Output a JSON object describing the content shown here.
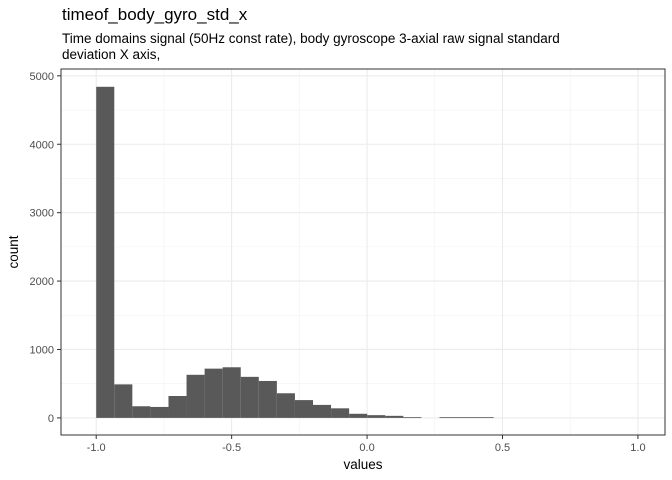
{
  "chart_data": {
    "type": "bar",
    "title": "timeof_body_gyro_std_x",
    "subtitle": "Time domains signal (50Hz const rate), body gyroscope 3-axial raw signal standard deviation X axis,",
    "xlabel": "values",
    "ylabel": "count",
    "xlim": [
      -1.13,
      1.1
    ],
    "ylim": [
      -250,
      5100
    ],
    "x_ticks": [
      -1.0,
      -0.5,
      0.0,
      0.5,
      1.0
    ],
    "x_tick_labels": [
      "-1.0",
      "-0.5",
      "0.0",
      "0.5",
      "1.0"
    ],
    "y_ticks": [
      0,
      1000,
      2000,
      3000,
      4000,
      5000
    ],
    "y_tick_labels": [
      "0",
      "1000",
      "2000",
      "3000",
      "4000",
      "5000"
    ],
    "bar_color": "#595959",
    "grid": true,
    "bins": {
      "start": -1.0,
      "width": 0.0667,
      "counts": [
        4840,
        490,
        170,
        160,
        320,
        630,
        720,
        740,
        600,
        540,
        360,
        260,
        190,
        140,
        60,
        40,
        30,
        10,
        0,
        10,
        10,
        10,
        0,
        0,
        0,
        0,
        0,
        0,
        0,
        0
      ]
    }
  }
}
